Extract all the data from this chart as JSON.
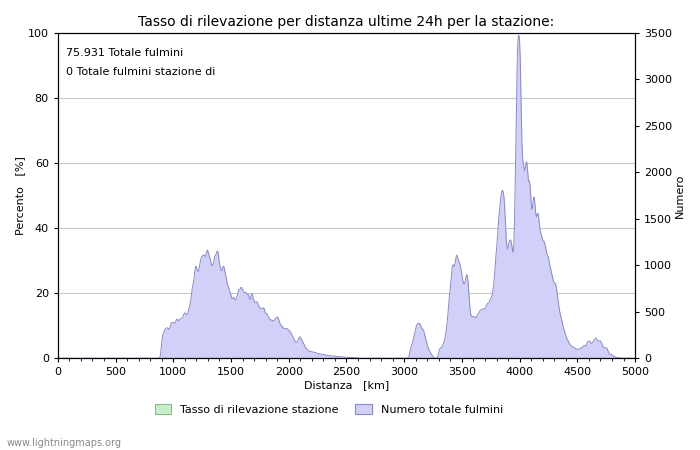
{
  "title": "Tasso di rilevazione per distanza ultime 24h per la stazione:",
  "xlabel": "Distanza   [km]",
  "ylabel_left": "Percento   [%]",
  "ylabel_right": "Numero",
  "xlim": [
    0,
    5000
  ],
  "ylim_left": [
    0,
    100
  ],
  "ylim_right": [
    0,
    3500
  ],
  "yticks_left": [
    0,
    20,
    40,
    60,
    80,
    100
  ],
  "yticks_right": [
    0,
    500,
    1000,
    1500,
    2000,
    2500,
    3000,
    3500
  ],
  "xticks": [
    0,
    500,
    1000,
    1500,
    2000,
    2500,
    3000,
    3500,
    4000,
    4500,
    5000
  ],
  "annotation_line1": "75.931 Totale fulmini",
  "annotation_line2": "0 Totale fulmini stazione di",
  "legend_label_green": "Tasso di rilevazione stazione",
  "legend_label_blue": "Numero totale fulmini",
  "watermark": "www.lightningmaps.org",
  "fill_blue": "#d0d0f8",
  "line_blue": "#8888cc",
  "fill_green": "#c8eec8",
  "line_green": "#88bb88",
  "bg_color": "#ffffff",
  "grid_color": "#bbbbbb",
  "title_fontsize": 10,
  "label_fontsize": 8,
  "tick_fontsize": 8,
  "annotation_fontsize": 8,
  "watermark_fontsize": 7
}
